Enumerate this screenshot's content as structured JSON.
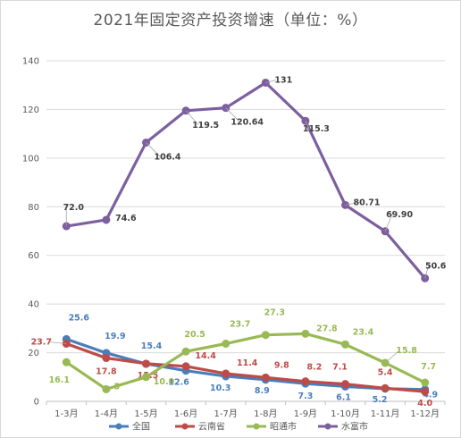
{
  "chart_data": {
    "type": "line",
    "title": "2021年固定资产投资增速（单位：%）",
    "xlabel": "",
    "ylabel": "",
    "ylim": [
      0,
      140
    ],
    "yticks": [
      0,
      20,
      40,
      60,
      80,
      100,
      120,
      140
    ],
    "grid": true,
    "legend_position": "bottom",
    "categories": [
      "1-3月",
      "1-4月",
      "1-5月",
      "1-6月",
      "1-7月",
      "1-8月",
      "1-9月",
      "1-10月",
      "1-11月",
      "1-12月"
    ],
    "series": [
      {
        "name": "全国",
        "color": "#4a7ebb",
        "values": [
          25.6,
          19.9,
          15.4,
          12.6,
          10.3,
          8.9,
          7.3,
          6.1,
          5.2,
          4.9
        ],
        "labels": [
          "25.6",
          "19.9",
          "15.4",
          "12.6",
          "10.3",
          "8.9",
          "7.3",
          "6.1",
          "5.2",
          "4.9"
        ]
      },
      {
        "name": "云南省",
        "color": "#be4b48",
        "values": [
          23.7,
          17.8,
          15.5,
          14.4,
          11.4,
          9.8,
          8.2,
          7.1,
          5.4,
          4.0
        ],
        "labels": [
          "23.7",
          "17.8",
          "15.5",
          "14.4",
          "11.4",
          "9.8",
          "8.2",
          "7.1",
          "5.4",
          "4.0"
        ]
      },
      {
        "name": "昭通市",
        "color": "#98b954",
        "values": [
          16.1,
          5,
          10.0,
          20.5,
          23.7,
          27.3,
          27.8,
          23.4,
          15.8,
          7.7
        ],
        "labels": [
          "16.1",
          "5",
          "10.0",
          "20.5",
          "23.7",
          "27.3",
          "27.8",
          "23.4",
          "15.8",
          "7.7"
        ]
      },
      {
        "name": "水富市",
        "color": "#7d5fa0",
        "values": [
          72.0,
          74.6,
          106.4,
          119.5,
          120.64,
          131,
          115.3,
          80.71,
          69.9,
          50.6
        ],
        "labels": [
          "72.0",
          "74.6",
          "106.4",
          "119.5",
          "120.64",
          "131",
          "115.3",
          "80.71",
          "69.90",
          "50.6"
        ]
      }
    ]
  }
}
